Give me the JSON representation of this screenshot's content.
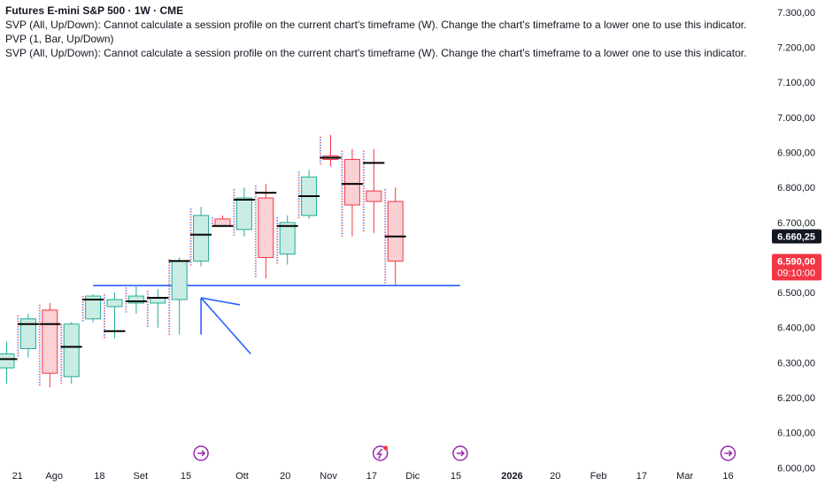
{
  "header": {
    "title": "Futures E-mini S&P 500 · 1W · CME",
    "indicators": [
      "SVP (All, Up/Down): Cannot calculate a session profile on the current chart's timeframe (W). Change the chart's timeframe to a lower one to use this indicator.",
      "PVP (1, Bar, Up/Down)",
      "SVP (All, Up/Down): Cannot calculate a session profile on the current chart's timeframe (W). Change the chart's timeframe to a lower one to use this indicator."
    ]
  },
  "colors": {
    "up_body": "#c8ece3",
    "up_border": "#22ab94",
    "down_body": "#f9d0d3",
    "down_border": "#f23645",
    "poc": "#000000",
    "drawing": "#2962ff",
    "last_price_bg": "#131722",
    "countdown_bg": "#f23645",
    "event_icon": "#9c27b0"
  },
  "price_tags": {
    "last": {
      "price": "6.660,25",
      "value": 6660.25
    },
    "countdown": {
      "price": "6.590,00",
      "value": 6590,
      "timer": "09:10:00"
    }
  },
  "chart_data": {
    "type": "candlestick",
    "y_axis": {
      "min": 5980,
      "max": 7330,
      "position": "right"
    },
    "y_ticks": [
      {
        "value": 7300,
        "label": "7.300,00"
      },
      {
        "value": 7200,
        "label": "7.200,00"
      },
      {
        "value": 7100,
        "label": "7.100,00"
      },
      {
        "value": 7000,
        "label": "7.000,00"
      },
      {
        "value": 6900,
        "label": "6.900,00"
      },
      {
        "value": 6800,
        "label": "6.800,00"
      },
      {
        "value": 6700,
        "label": "6.700,00"
      },
      {
        "value": 6600,
        "label": "6.600,00"
      },
      {
        "value": 6500,
        "label": "6.500,00"
      },
      {
        "value": 6400,
        "label": "6.400,00"
      },
      {
        "value": 6300,
        "label": "6.300,00"
      },
      {
        "value": 6200,
        "label": "6.200,00"
      },
      {
        "value": 6100,
        "label": "6.100,00"
      },
      {
        "value": 6000,
        "label": "6.000,00"
      }
    ],
    "x_ticks": [
      {
        "label": "21",
        "week": 0.5,
        "bold": false
      },
      {
        "label": "Ago",
        "week": 2.2,
        "bold": false
      },
      {
        "label": "18",
        "week": 4.3,
        "bold": false
      },
      {
        "label": "Set",
        "week": 6.2,
        "bold": false
      },
      {
        "label": "15",
        "week": 8.3,
        "bold": false
      },
      {
        "label": "Ott",
        "week": 10.9,
        "bold": false
      },
      {
        "label": "20",
        "week": 12.9,
        "bold": false
      },
      {
        "label": "Nov",
        "week": 14.9,
        "bold": false
      },
      {
        "label": "17",
        "week": 16.9,
        "bold": false
      },
      {
        "label": "Dic",
        "week": 18.8,
        "bold": false
      },
      {
        "label": "15",
        "week": 20.8,
        "bold": false
      },
      {
        "label": "2026",
        "week": 23.4,
        "bold": true
      },
      {
        "label": "20",
        "week": 25.4,
        "bold": false
      },
      {
        "label": "Feb",
        "week": 27.4,
        "bold": false
      },
      {
        "label": "17",
        "week": 29.4,
        "bold": false
      },
      {
        "label": "Mar",
        "week": 31.4,
        "bold": false
      },
      {
        "label": "16",
        "week": 33.4,
        "bold": false
      }
    ],
    "candles": [
      {
        "open": 6285,
        "high": 6360,
        "low": 6240,
        "close": 6325,
        "poc": 6310
      },
      {
        "open": 6340,
        "high": 6440,
        "low": 6315,
        "close": 6425,
        "poc": 6410
      },
      {
        "open": 6450,
        "high": 6470,
        "low": 6230,
        "close": 6270,
        "poc": 6410
      },
      {
        "open": 6260,
        "high": 6415,
        "low": 6240,
        "close": 6410,
        "poc": 6345
      },
      {
        "open": 6425,
        "high": 6495,
        "low": 6415,
        "close": 6490,
        "poc": 6480
      },
      {
        "open": 6460,
        "high": 6500,
        "low": 6370,
        "close": 6480,
        "poc": 6390
      },
      {
        "open": 6470,
        "high": 6520,
        "low": 6440,
        "close": 6490,
        "poc": 6475
      },
      {
        "open": 6470,
        "high": 6510,
        "low": 6400,
        "close": 6485,
        "poc": 6485
      },
      {
        "open": 6480,
        "high": 6600,
        "low": 6380,
        "close": 6590,
        "poc": 6590
      },
      {
        "open": 6590,
        "high": 6745,
        "low": 6575,
        "close": 6720,
        "poc": 6665
      },
      {
        "open": 6710,
        "high": 6720,
        "low": 6690,
        "close": 6690,
        "poc": 6690
      },
      {
        "open": 6680,
        "high": 6800,
        "low": 6660,
        "close": 6770,
        "poc": 6765
      },
      {
        "open": 6770,
        "high": 6810,
        "low": 6540,
        "close": 6600,
        "poc": 6785
      },
      {
        "open": 6610,
        "high": 6720,
        "low": 6580,
        "close": 6700,
        "poc": 6690
      },
      {
        "open": 6720,
        "high": 6850,
        "low": 6710,
        "close": 6830,
        "poc": 6775
      },
      {
        "open": 6890,
        "high": 6950,
        "low": 6860,
        "close": 6880,
        "poc": 6885
      },
      {
        "open": 6880,
        "high": 6910,
        "low": 6660,
        "close": 6750,
        "poc": 6810
      },
      {
        "open": 6790,
        "high": 6910,
        "low": 6670,
        "close": 6760,
        "poc": 6870
      },
      {
        "open": 6760,
        "high": 6800,
        "low": 6520,
        "close": 6590,
        "poc": 6660
      }
    ],
    "horizontal_line": {
      "price": 6520,
      "from_week": 4.0,
      "to_week": 21.0
    },
    "arrow_lines": [
      {
        "from_week": 9.0,
        "from_price": 6485,
        "to_week": 10.8,
        "to_price": 6465
      },
      {
        "from_week": 9.0,
        "from_price": 6485,
        "to_week": 11.3,
        "to_price": 6325
      },
      {
        "from_week": 9.0,
        "from_price": 6485,
        "to_week": 9.0,
        "to_price": 6380
      }
    ],
    "event_icons": [
      {
        "week": 9.0,
        "type": "arrow"
      },
      {
        "week": 17.3,
        "type": "earnings"
      },
      {
        "week": 21.0,
        "type": "arrow"
      },
      {
        "week": 33.4,
        "type": "arrow"
      }
    ]
  }
}
